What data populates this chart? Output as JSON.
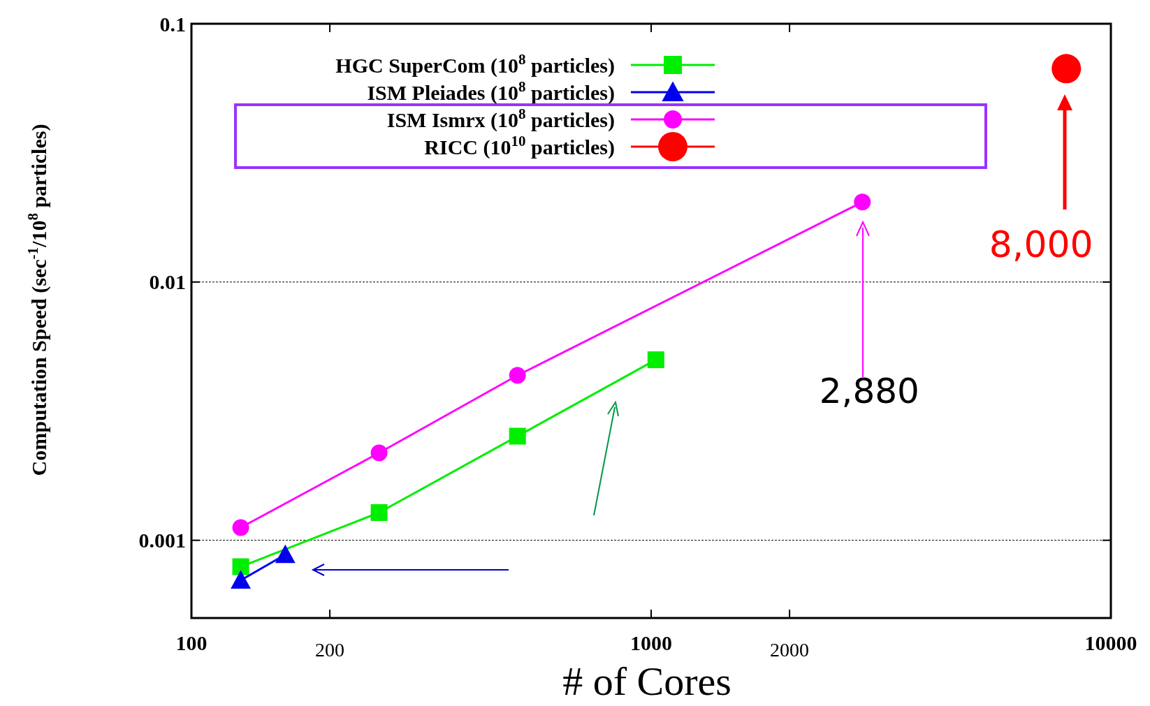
{
  "chart_data": {
    "type": "line",
    "xlabel": "# of Cores",
    "ylabel": "Computation Speed (sec$^{-1}$/10$^{8}$ particles)",
    "log": "xy",
    "xlim": [
      100,
      10000
    ],
    "ylim": [
      0.0005,
      0.1
    ],
    "xticks": [
      100,
      200,
      1000,
      2000,
      10000
    ],
    "yticks": [
      0.001,
      0.01,
      0.1
    ],
    "grid": "y",
    "legend": "top left",
    "series": [
      {
        "name": "HGC SuperCom (10$^{8}$ particles)",
        "color": "#00ee00",
        "marker": "square",
        "x": [
          128,
          256,
          512,
          1024
        ],
        "values": [
          0.00079,
          0.00128,
          0.00253,
          0.005
        ]
      },
      {
        "name": "ISM Pleiades (10$^{8}$ particles)",
        "color": "#0000ee",
        "marker": "triangle",
        "x": [
          128,
          160
        ],
        "values": [
          0.0007,
          0.00088
        ]
      },
      {
        "name": "ISM Ismrx (10$^{8}$ particles)",
        "color": "#ff00ff",
        "marker": "circle",
        "x": [
          128,
          256,
          512,
          2880
        ],
        "values": [
          0.00112,
          0.00218,
          0.00435,
          0.0204
        ]
      },
      {
        "name": "RICC (10$^{10}$ particles)",
        "color": "#ff0000",
        "marker": "circle",
        "x": [
          8000
        ],
        "values": [
          0.067
        ]
      }
    ],
    "annotations": [
      "2,880",
      "8,000"
    ]
  }
}
